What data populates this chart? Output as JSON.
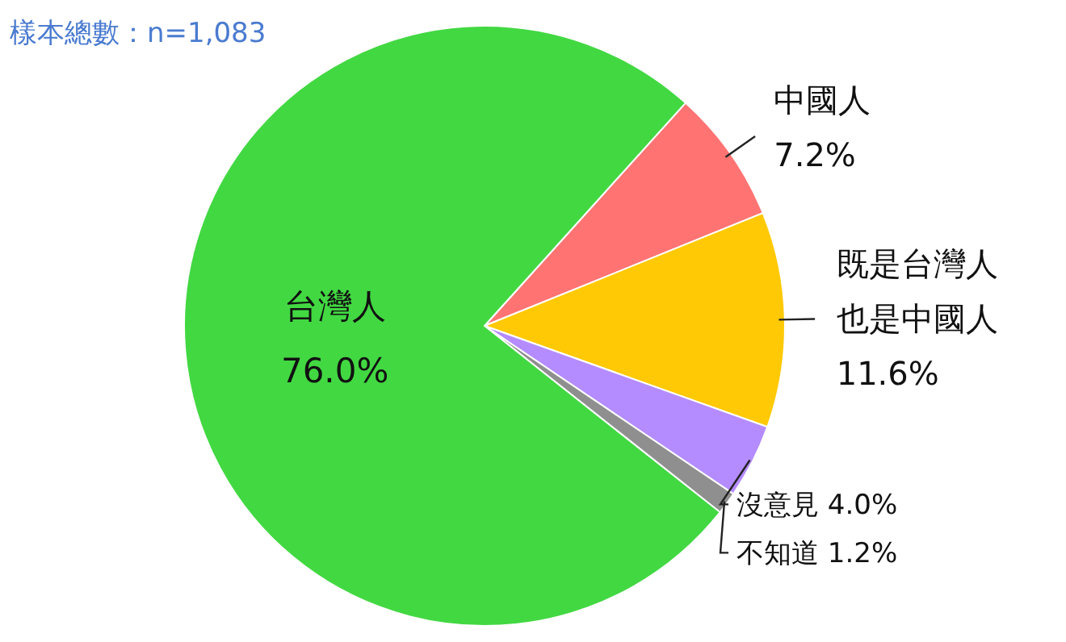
{
  "chart_data": {
    "type": "pie",
    "title": "樣本總數：n=1,083",
    "categories": [
      "中國人",
      "既是台灣人也是中國人",
      "沒意見",
      "不知道",
      "台灣人"
    ],
    "values": [
      7.2,
      11.6,
      4.0,
      1.2,
      76.0
    ],
    "colors": [
      "#ff7373",
      "#ffc905",
      "#b48cff",
      "#8f8f8f",
      "#42d842"
    ],
    "value_labels": [
      "7.2%",
      "11.6%",
      "4.0%",
      "1.2%",
      "76.0%"
    ]
  }
}
